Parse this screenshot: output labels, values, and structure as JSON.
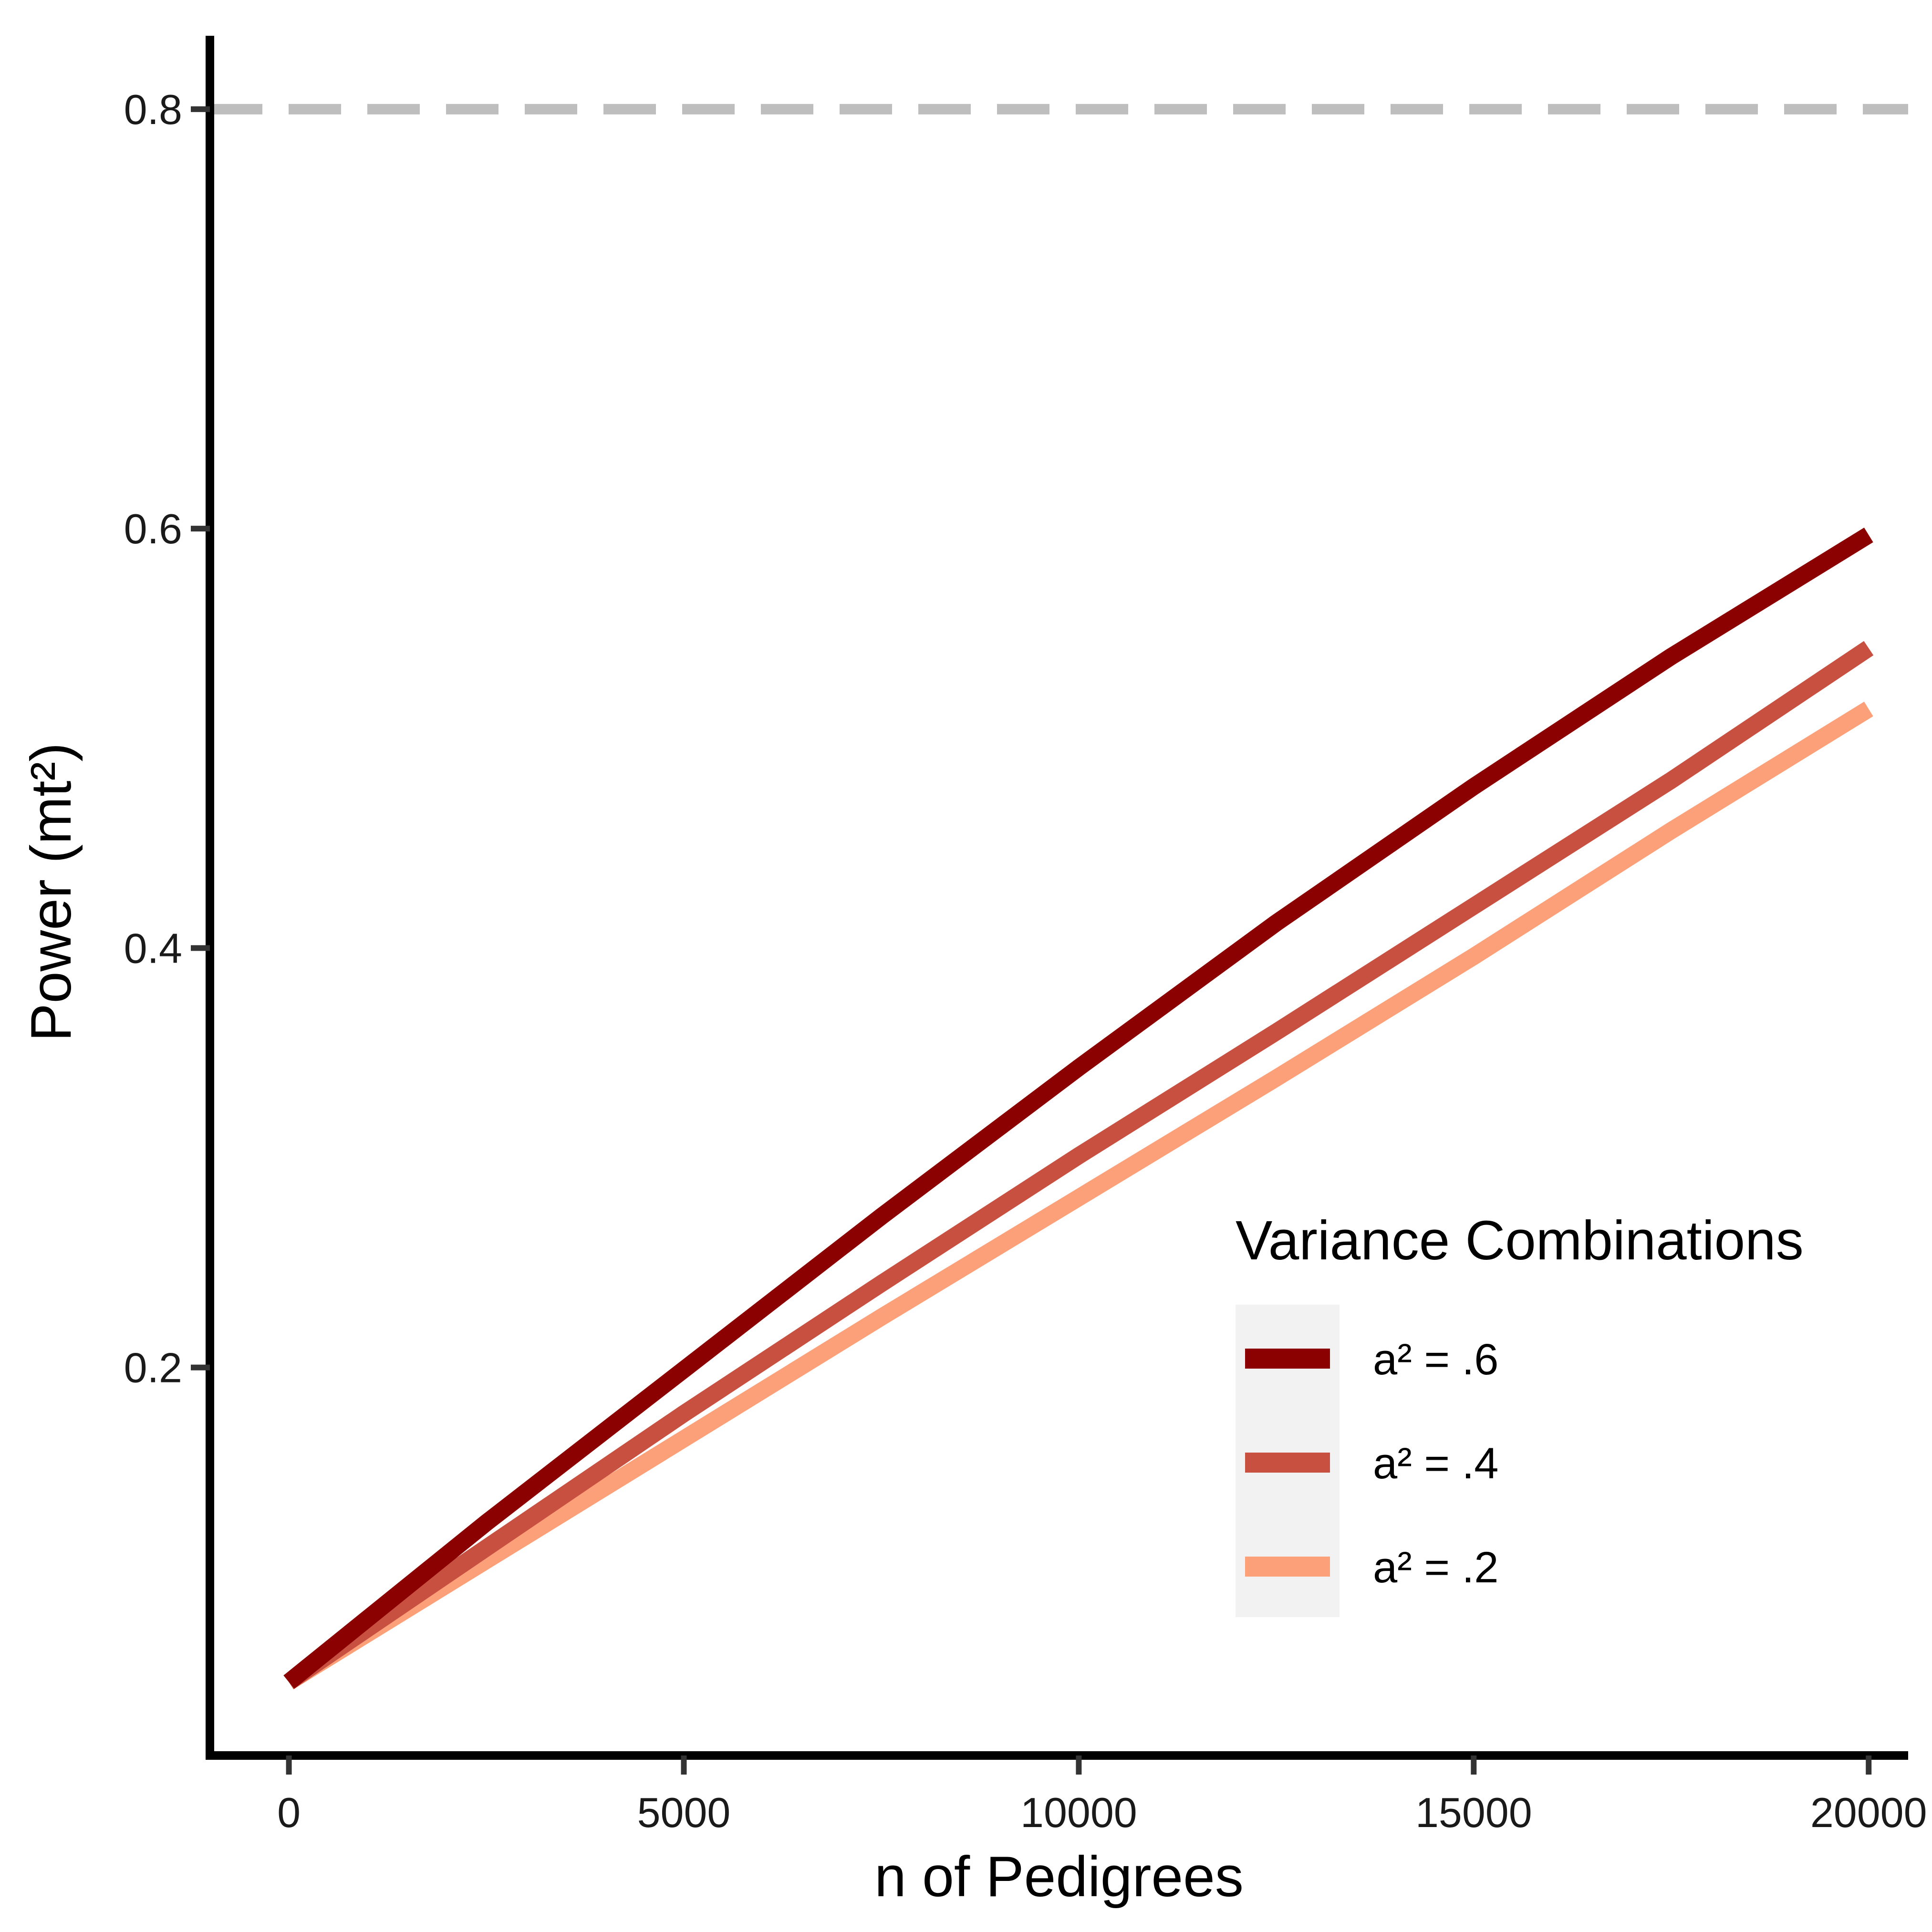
{
  "chart_data": {
    "type": "line",
    "xlabel": "n of Pedigrees",
    "ylabel": "Power (mt²)",
    "xlim": [
      -1000,
      20500
    ],
    "ylim": [
      0.015,
      0.835
    ],
    "x_ticks": [
      0,
      5000,
      10000,
      15000,
      20000
    ],
    "x_tick_labels": [
      "0",
      "5000",
      "10000",
      "15000",
      "20000"
    ],
    "y_ticks": [
      0.2,
      0.4,
      0.6,
      0.8
    ],
    "y_tick_labels": [
      "0.2",
      "0.4",
      "0.6",
      "0.8"
    ],
    "reference_line": {
      "y": 0.8,
      "style": "dashed",
      "color": "#bebebe"
    },
    "grid": false,
    "legend": {
      "title": "Variance Combinations",
      "placement": "bottom-right"
    },
    "x": [
      0,
      2500,
      5000,
      7500,
      10000,
      12500,
      15000,
      17500,
      20000
    ],
    "series": [
      {
        "name": "a² = .6",
        "color": "#8b0000",
        "values": [
          0.05,
          0.126,
          0.199,
          0.272,
          0.343,
          0.412,
          0.477,
          0.539,
          0.597
        ]
      },
      {
        "name": "a² = .4",
        "color": "#c85040",
        "values": [
          0.05,
          0.114,
          0.178,
          0.24,
          0.301,
          0.36,
          0.42,
          0.48,
          0.543
        ]
      },
      {
        "name": "a² = .2",
        "color": "#fca07a",
        "values": [
          0.05,
          0.108,
          0.166,
          0.224,
          0.281,
          0.338,
          0.396,
          0.456,
          0.514
        ]
      }
    ]
  }
}
